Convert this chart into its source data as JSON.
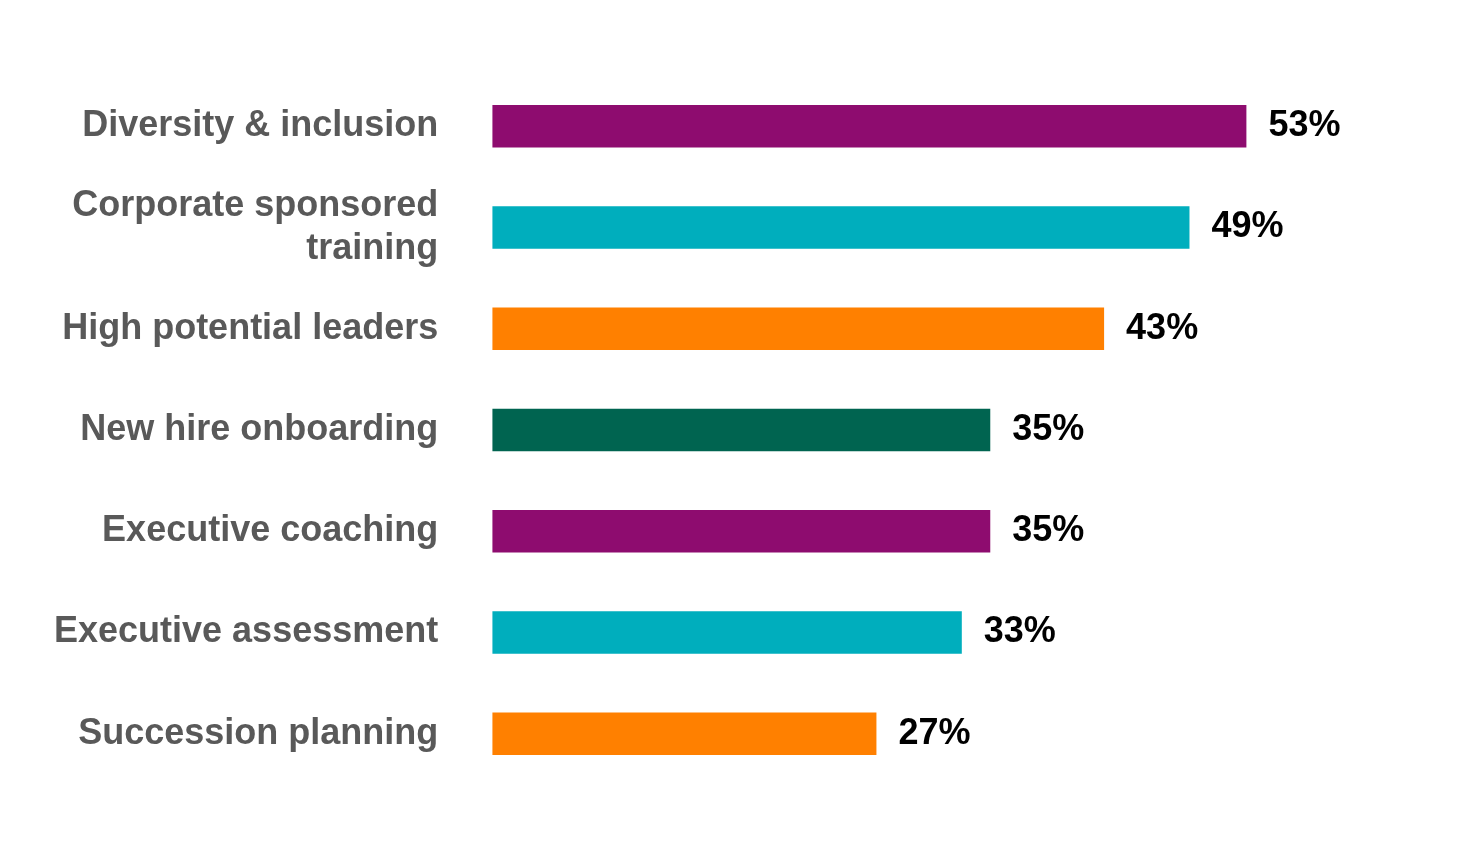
{
  "chart_data": {
    "type": "bar",
    "orientation": "horizontal",
    "categories": [
      "Diversity & inclusion",
      "Corporate sponsored training",
      "High potential leaders",
      "New hire onboarding",
      "Executive coaching",
      "Executive assessment",
      "Succession planning"
    ],
    "values": [
      53,
      49,
      43,
      35,
      35,
      33,
      27
    ],
    "colors": [
      "#8e0c6f",
      "#00aebd",
      "#ff8000",
      "#006450",
      "#8e0c6f",
      "#00aebd",
      "#ff8000"
    ],
    "value_labels": [
      "53%",
      "49%",
      "43%",
      "35%",
      "35%",
      "33%",
      "27%"
    ],
    "legend": false
  }
}
